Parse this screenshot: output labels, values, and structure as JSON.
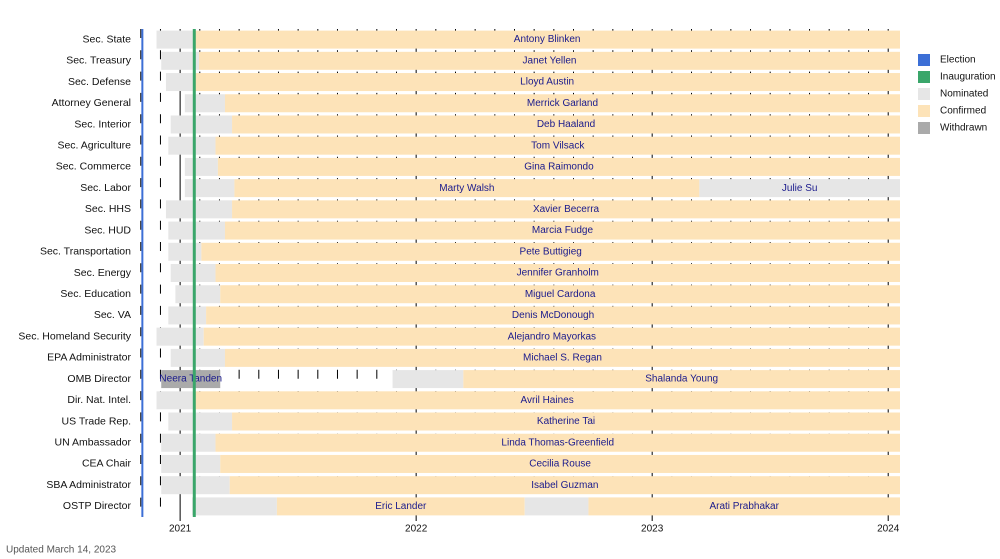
{
  "chart_data": {
    "type": "timeline",
    "xlim": [
      2020.83,
      2024.05
    ],
    "xticks": [
      2021,
      2022,
      2023,
      2024
    ],
    "events": [
      {
        "name": "Election",
        "color": "#3c6fd6",
        "x": 2020.84
      },
      {
        "name": "Inauguration",
        "color": "#3aa66a",
        "x": 2021.06
      }
    ],
    "statuses": [
      {
        "name": "Nominated",
        "color": "#e6e6e6"
      },
      {
        "name": "Confirmed",
        "color": "#fde3b8"
      },
      {
        "name": "Withdrawn",
        "color": "#aaaaaa"
      }
    ],
    "rows": [
      {
        "label": "Sec. State",
        "segments": [
          {
            "status": "Nominated",
            "start": 2020.9,
            "end": 2021.06
          },
          {
            "status": "Confirmed",
            "start": 2021.06,
            "end": 2024.05,
            "name": "Antony Blinken"
          }
        ]
      },
      {
        "label": "Sec. Treasury",
        "segments": [
          {
            "status": "Nominated",
            "start": 2020.92,
            "end": 2021.08
          },
          {
            "status": "Confirmed",
            "start": 2021.08,
            "end": 2024.05,
            "name": "Janet Yellen"
          }
        ]
      },
      {
        "label": "Sec. Defense",
        "segments": [
          {
            "status": "Nominated",
            "start": 2020.94,
            "end": 2021.06
          },
          {
            "status": "Confirmed",
            "start": 2021.06,
            "end": 2024.05,
            "name": "Lloyd Austin"
          }
        ]
      },
      {
        "label": "Attorney General",
        "segments": [
          {
            "status": "Nominated",
            "start": 2021.02,
            "end": 2021.19
          },
          {
            "status": "Confirmed",
            "start": 2021.19,
            "end": 2024.05,
            "name": "Merrick Garland"
          }
        ]
      },
      {
        "label": "Sec. Interior",
        "segments": [
          {
            "status": "Nominated",
            "start": 2020.96,
            "end": 2021.22
          },
          {
            "status": "Confirmed",
            "start": 2021.22,
            "end": 2024.05,
            "name": "Deb Haaland"
          }
        ]
      },
      {
        "label": "Sec. Agriculture",
        "segments": [
          {
            "status": "Nominated",
            "start": 2020.95,
            "end": 2021.15
          },
          {
            "status": "Confirmed",
            "start": 2021.15,
            "end": 2024.05,
            "name": "Tom Vilsack"
          }
        ]
      },
      {
        "label": "Sec. Commerce",
        "segments": [
          {
            "status": "Nominated",
            "start": 2021.02,
            "end": 2021.16
          },
          {
            "status": "Confirmed",
            "start": 2021.16,
            "end": 2024.05,
            "name": "Gina Raimondo"
          }
        ]
      },
      {
        "label": "Sec. Labor",
        "segments": [
          {
            "status": "Nominated",
            "start": 2021.02,
            "end": 2021.23
          },
          {
            "status": "Confirmed",
            "start": 2021.23,
            "end": 2023.2,
            "name": "Marty Walsh"
          },
          {
            "status": "Nominated",
            "start": 2023.2,
            "end": 2024.05,
            "name": "Julie Su"
          }
        ]
      },
      {
        "label": "Sec. HHS",
        "segments": [
          {
            "status": "Nominated",
            "start": 2020.94,
            "end": 2021.22
          },
          {
            "status": "Confirmed",
            "start": 2021.22,
            "end": 2024.05,
            "name": "Xavier Becerra"
          }
        ]
      },
      {
        "label": "Sec. HUD",
        "segments": [
          {
            "status": "Nominated",
            "start": 2020.95,
            "end": 2021.19
          },
          {
            "status": "Confirmed",
            "start": 2021.19,
            "end": 2024.05,
            "name": "Marcia Fudge"
          }
        ]
      },
      {
        "label": "Sec. Transportation",
        "segments": [
          {
            "status": "Nominated",
            "start": 2020.95,
            "end": 2021.09
          },
          {
            "status": "Confirmed",
            "start": 2021.09,
            "end": 2024.05,
            "name": "Pete Buttigieg"
          }
        ]
      },
      {
        "label": "Sec. Energy",
        "segments": [
          {
            "status": "Nominated",
            "start": 2020.96,
            "end": 2021.15
          },
          {
            "status": "Confirmed",
            "start": 2021.15,
            "end": 2024.05,
            "name": "Jennifer Granholm"
          }
        ]
      },
      {
        "label": "Sec. Education",
        "segments": [
          {
            "status": "Nominated",
            "start": 2020.98,
            "end": 2021.17
          },
          {
            "status": "Confirmed",
            "start": 2021.17,
            "end": 2024.05,
            "name": "Miguel Cardona"
          }
        ]
      },
      {
        "label": "Sec. VA",
        "segments": [
          {
            "status": "Nominated",
            "start": 2020.95,
            "end": 2021.11
          },
          {
            "status": "Confirmed",
            "start": 2021.11,
            "end": 2024.05,
            "name": "Denis McDonough"
          }
        ]
      },
      {
        "label": "Sec. Homeland Security",
        "segments": [
          {
            "status": "Nominated",
            "start": 2020.9,
            "end": 2021.1
          },
          {
            "status": "Confirmed",
            "start": 2021.1,
            "end": 2024.05,
            "name": "Alejandro Mayorkas"
          }
        ]
      },
      {
        "label": "EPA Administrator",
        "segments": [
          {
            "status": "Nominated",
            "start": 2020.96,
            "end": 2021.19
          },
          {
            "status": "Confirmed",
            "start": 2021.19,
            "end": 2024.05,
            "name": "Michael S. Regan"
          }
        ]
      },
      {
        "label": "OMB Director",
        "segments": [
          {
            "status": "Withdrawn",
            "start": 2020.92,
            "end": 2021.17,
            "name": "Neera Tanden"
          },
          {
            "status": "Nominated",
            "start": 2021.9,
            "end": 2022.2
          },
          {
            "status": "Confirmed",
            "start": 2022.2,
            "end": 2024.05,
            "name": "Shalanda Young"
          }
        ]
      },
      {
        "label": "Dir. Nat. Intel.",
        "segments": [
          {
            "status": "Nominated",
            "start": 2020.9,
            "end": 2021.06
          },
          {
            "status": "Confirmed",
            "start": 2021.06,
            "end": 2024.05,
            "name": "Avril Haines"
          }
        ]
      },
      {
        "label": "US Trade Rep.",
        "segments": [
          {
            "status": "Nominated",
            "start": 2020.95,
            "end": 2021.22
          },
          {
            "status": "Confirmed",
            "start": 2021.22,
            "end": 2024.05,
            "name": "Katherine Tai"
          }
        ]
      },
      {
        "label": "UN Ambassador",
        "segments": [
          {
            "status": "Nominated",
            "start": 2020.92,
            "end": 2021.15
          },
          {
            "status": "Confirmed",
            "start": 2021.15,
            "end": 2024.05,
            "name": "Linda Thomas-Greenfield"
          }
        ]
      },
      {
        "label": "CEA Chair",
        "segments": [
          {
            "status": "Nominated",
            "start": 2020.92,
            "end": 2021.17
          },
          {
            "status": "Confirmed",
            "start": 2021.17,
            "end": 2024.05,
            "name": "Cecilia Rouse"
          }
        ]
      },
      {
        "label": "SBA Administrator",
        "segments": [
          {
            "status": "Nominated",
            "start": 2020.92,
            "end": 2021.21
          },
          {
            "status": "Confirmed",
            "start": 2021.21,
            "end": 2024.05,
            "name": "Isabel Guzman"
          }
        ]
      },
      {
        "label": "OSTP Director",
        "segments": [
          {
            "status": "Nominated",
            "start": 2021.05,
            "end": 2021.41
          },
          {
            "status": "Confirmed",
            "start": 2021.41,
            "end": 2022.46,
            "name": "Eric Lander"
          },
          {
            "status": "Nominated",
            "start": 2022.46,
            "end": 2022.73
          },
          {
            "status": "Confirmed",
            "start": 2022.73,
            "end": 2024.05,
            "name": "Arati Prabhakar"
          }
        ]
      }
    ],
    "footnote": "Updated March 14, 2023"
  }
}
